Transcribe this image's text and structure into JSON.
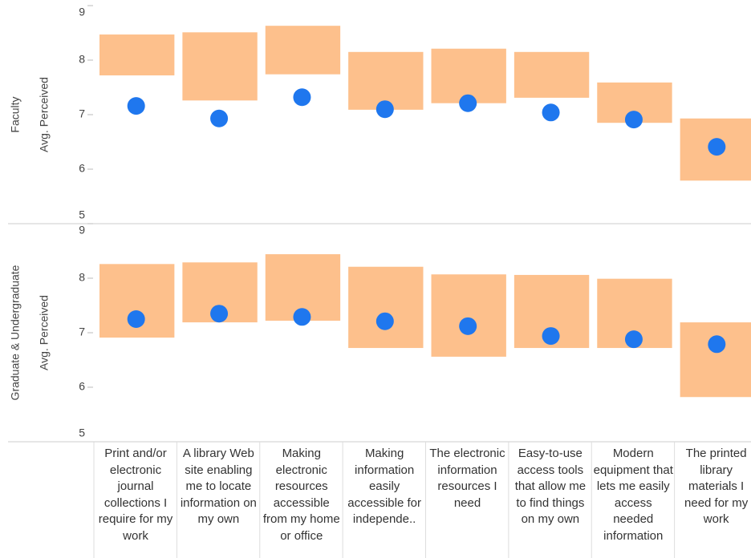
{
  "chart_data": {
    "type": "range-dot",
    "categories": [
      "Print and/or electronic journal collections I require for my work",
      "A library Web site enabling me to locate information on my own",
      "Making electronic resources accessible from my home or office",
      "Making information easily accessible for independe..",
      "The electronic information resources I need",
      "Easy-to-use access tools that allow me to find things on my own",
      "Modern equipment that lets me easily access needed information",
      "The printed library materials I need for my work"
    ],
    "ylim": [
      5,
      9
    ],
    "yticks": [
      5,
      6,
      7,
      8,
      9
    ],
    "range_color": "#fdc08c",
    "dot_color": "#1f77ee",
    "panels": [
      {
        "row_label": "Faculty",
        "y_label": "Avg. Perceived",
        "range_low": [
          7.72,
          7.26,
          7.74,
          7.09,
          7.21,
          7.31,
          6.85,
          5.79
        ],
        "range_high": [
          8.47,
          8.51,
          8.63,
          8.15,
          8.21,
          8.15,
          7.59,
          6.93
        ],
        "values": [
          7.16,
          6.93,
          7.32,
          7.1,
          7.21,
          7.04,
          6.91,
          6.41
        ]
      },
      {
        "row_label": "Graduate & Undergraduate",
        "y_label": "Avg. Perceived",
        "range_low": [
          6.91,
          7.19,
          7.22,
          6.72,
          6.56,
          6.72,
          6.72,
          5.82
        ],
        "range_high": [
          8.26,
          8.29,
          8.44,
          8.21,
          8.07,
          8.06,
          7.99,
          7.19
        ],
        "values": [
          7.25,
          7.35,
          7.29,
          7.21,
          7.12,
          6.94,
          6.88,
          6.79
        ]
      }
    ]
  }
}
